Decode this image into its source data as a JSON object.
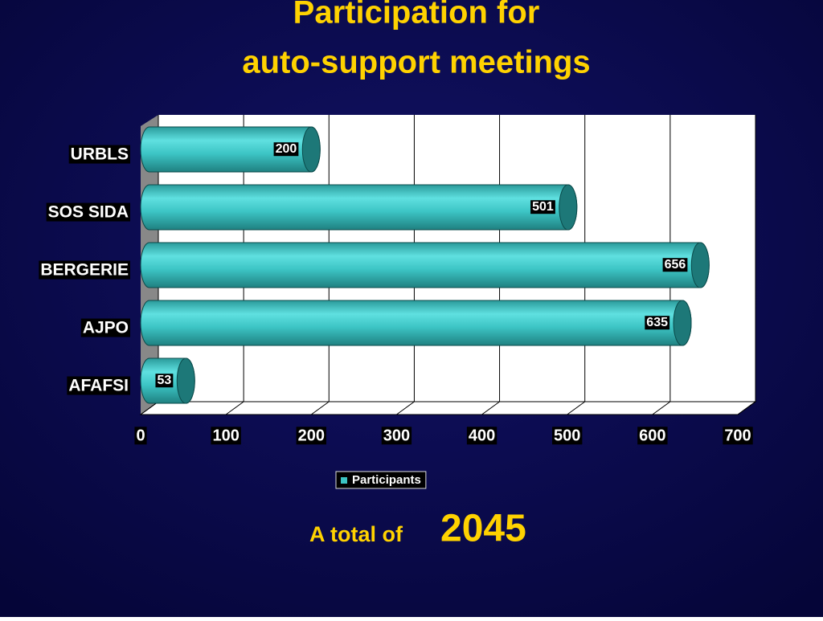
{
  "chart_data": {
    "type": "bar",
    "title": [
      "Participation for",
      "auto-support meetings"
    ],
    "categories": [
      "URBLS",
      "SOS SIDA",
      "BERGERIE",
      "AJPO",
      "AFAFSI"
    ],
    "series": [
      {
        "name": "Participants",
        "color": "#3cc4c4",
        "values": [
          200,
          501,
          656,
          635,
          53
        ]
      }
    ],
    "xlim": [
      0,
      700
    ],
    "xticks": [
      0,
      100,
      200,
      300,
      400,
      500,
      600,
      700
    ],
    "grid": true,
    "annotation": {
      "text": "A total of",
      "value": 2045
    }
  }
}
